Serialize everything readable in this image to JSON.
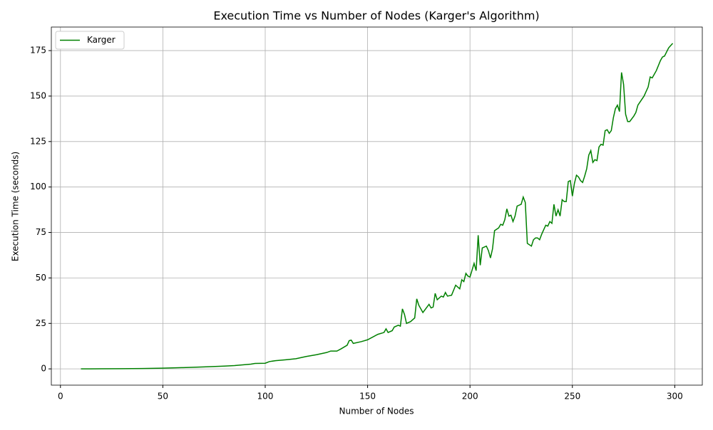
{
  "chart_data": {
    "type": "line",
    "title": "Execution Time vs Number of Nodes (Karger's Algorithm)",
    "x_label": "Number of Nodes",
    "y_label": "Execution Time (seconds)",
    "x": [
      10,
      20,
      30,
      40,
      50,
      60,
      70,
      80,
      85,
      90,
      93,
      95,
      100,
      102,
      105,
      110,
      115,
      120,
      125,
      130,
      132,
      135,
      137,
      140,
      141,
      142,
      143,
      147,
      150,
      155,
      158,
      159,
      160,
      162,
      163,
      165,
      166,
      167,
      168,
      169,
      171,
      173,
      174,
      175,
      177,
      179,
      180,
      181,
      182,
      183,
      184,
      186,
      187,
      188,
      189,
      191,
      193,
      195,
      196,
      197,
      198,
      199,
      200,
      202,
      203,
      204,
      205,
      206,
      208,
      209,
      210,
      211,
      212,
      214,
      215,
      216,
      217,
      218,
      219,
      220,
      221,
      222,
      223,
      225,
      226,
      227,
      228,
      230,
      231,
      232,
      233,
      234,
      235,
      237,
      238,
      239,
      240,
      241,
      242,
      243,
      244,
      245,
      246,
      247,
      248,
      249,
      250,
      251,
      252,
      253,
      254,
      255,
      256,
      257,
      258,
      259,
      260,
      261,
      262,
      263,
      264,
      265,
      266,
      267,
      268,
      269,
      270,
      271,
      272,
      273,
      274,
      275,
      276,
      277,
      278,
      280,
      281,
      282,
      285,
      287,
      288,
      289,
      291,
      293,
      294,
      295,
      297,
      299
    ],
    "series": [
      {
        "name": "Karger",
        "color": "#008000",
        "values": [
          0,
          0.05,
          0.1,
          0.2,
          0.4,
          0.7,
          1.1,
          1.5,
          1.8,
          2.3,
          2.6,
          3.0,
          3.1,
          4.0,
          4.5,
          5.0,
          5.6,
          6.8,
          7.8,
          9.0,
          9.8,
          9.8,
          11,
          13,
          15.5,
          15.8,
          14,
          15,
          16,
          19,
          20,
          22,
          20,
          21,
          23,
          24,
          23.5,
          33,
          30,
          25,
          26,
          28,
          38.5,
          35,
          31,
          34,
          35.5,
          33.5,
          34,
          41.5,
          38,
          40,
          39.5,
          42,
          40,
          40.5,
          46,
          44,
          49,
          48,
          52.5,
          51,
          50.5,
          58,
          54,
          73.5,
          57,
          66.5,
          67.5,
          65,
          61,
          66,
          76,
          77.5,
          79.5,
          79,
          82,
          88,
          84,
          84.5,
          81,
          84,
          89.5,
          90.5,
          94.5,
          91.5,
          69,
          67.5,
          71,
          72,
          72,
          71,
          74,
          79,
          78.5,
          81,
          80,
          90.5,
          84,
          87.5,
          84,
          93,
          92,
          92,
          103,
          103.5,
          95,
          102,
          106.5,
          105.5,
          103.5,
          102.5,
          106,
          110,
          117.5,
          120,
          113.5,
          115,
          114.5,
          122,
          123.5,
          123,
          131,
          131.5,
          129.5,
          131,
          138,
          143,
          145,
          141.5,
          163,
          156.5,
          140,
          136,
          136,
          139,
          141,
          145,
          150,
          155,
          160.5,
          160,
          164,
          169.5,
          171.5,
          172,
          176.5,
          179
        ]
      }
    ],
    "xlim": [
      -4.45,
      313.45
    ],
    "ylim": [
      -8.95,
      187.95
    ],
    "xticks": [
      0,
      50,
      100,
      150,
      200,
      250,
      300
    ],
    "yticks": [
      0,
      25,
      50,
      75,
      100,
      125,
      150,
      175
    ],
    "grid": true,
    "legend": "upper-left"
  }
}
